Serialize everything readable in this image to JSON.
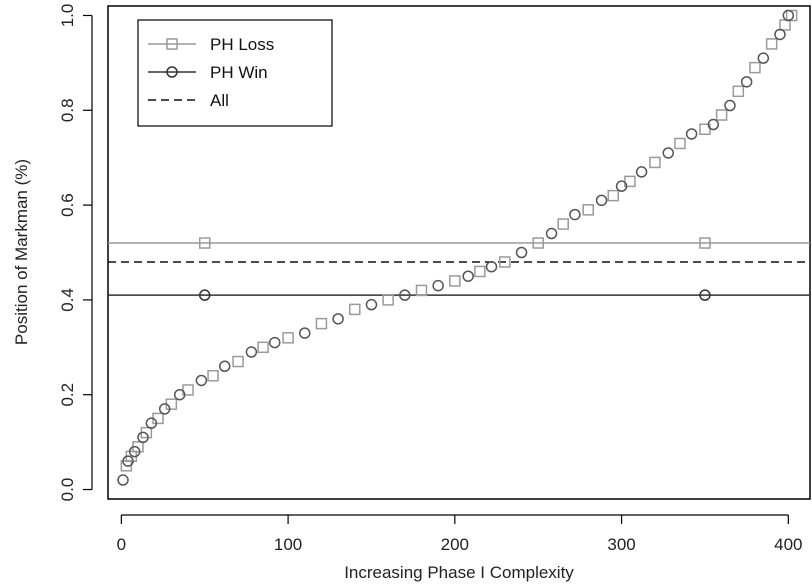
{
  "chart_data": {
    "type": "scatter",
    "title": "",
    "xlabel": "Increasing Phase I Complexity",
    "ylabel": "Position of Markman (%)",
    "xlim": [
      -8,
      413
    ],
    "ylim": [
      -0.02,
      1.02
    ],
    "x_ticks": [
      0,
      100,
      200,
      300,
      400
    ],
    "x_tick_labels": [
      "0",
      "100",
      "200",
      "300",
      "400"
    ],
    "y_ticks": [
      0.0,
      0.2,
      0.4,
      0.6,
      0.8,
      1.0
    ],
    "y_tick_labels": [
      "0.0",
      "0.2",
      "0.4",
      "0.6",
      "0.8",
      "1.0"
    ],
    "grid": false,
    "legend_position": "top-left",
    "series": [
      {
        "name": "PH Loss",
        "kind": "points",
        "marker": "square",
        "color": "#9a9a9a",
        "x": [
          3,
          6,
          10,
          15,
          22,
          30,
          40,
          55,
          70,
          85,
          100,
          120,
          140,
          160,
          180,
          200,
          215,
          230,
          250,
          265,
          280,
          295,
          305,
          320,
          335,
          350,
          360,
          370,
          380,
          390,
          398,
          402
        ],
        "y": [
          0.05,
          0.07,
          0.09,
          0.12,
          0.15,
          0.18,
          0.21,
          0.24,
          0.27,
          0.3,
          0.32,
          0.35,
          0.38,
          0.4,
          0.42,
          0.44,
          0.46,
          0.48,
          0.52,
          0.56,
          0.59,
          0.62,
          0.65,
          0.69,
          0.73,
          0.76,
          0.79,
          0.84,
          0.89,
          0.94,
          0.98,
          1.0
        ]
      },
      {
        "name": "PH Win",
        "kind": "points",
        "marker": "circle",
        "color": "#555555",
        "x": [
          1,
          4,
          8,
          13,
          18,
          26,
          35,
          48,
          62,
          78,
          92,
          110,
          130,
          150,
          170,
          190,
          208,
          222,
          240,
          258,
          272,
          288,
          300,
          312,
          328,
          342,
          355,
          365,
          375,
          385,
          395,
          400
        ],
        "y": [
          0.02,
          0.06,
          0.08,
          0.11,
          0.14,
          0.17,
          0.2,
          0.23,
          0.26,
          0.29,
          0.31,
          0.33,
          0.36,
          0.39,
          0.41,
          0.43,
          0.45,
          0.47,
          0.5,
          0.54,
          0.58,
          0.61,
          0.64,
          0.67,
          0.71,
          0.75,
          0.77,
          0.81,
          0.86,
          0.91,
          0.96,
          1.0
        ]
      },
      {
        "name": "PH Loss",
        "kind": "hline",
        "y": 0.52,
        "marker": "square",
        "marker_x": [
          50,
          350
        ],
        "color": "#9a9a9a",
        "dash": "solid"
      },
      {
        "name": "PH Win",
        "kind": "hline",
        "y": 0.41,
        "marker": "circle",
        "marker_x": [
          50,
          350
        ],
        "color": "#333333",
        "dash": "solid"
      },
      {
        "name": "All",
        "kind": "hline",
        "y": 0.48,
        "marker": "none",
        "color": "#111111",
        "dash": "dashed"
      }
    ],
    "legend": [
      {
        "label": "PH Loss",
        "marker": "square",
        "color": "#9a9a9a",
        "dash": "solid"
      },
      {
        "label": "PH Win",
        "marker": "circle",
        "color": "#333333",
        "dash": "solid"
      },
      {
        "label": "All",
        "marker": "none",
        "color": "#111111",
        "dash": "dashed"
      }
    ]
  }
}
